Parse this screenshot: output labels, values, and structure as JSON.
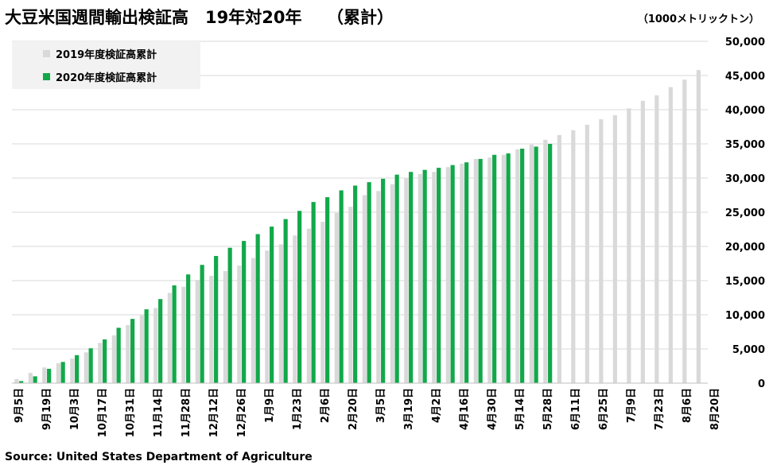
{
  "title": "大豆米国週間輸出検証高　19年対20年　　（累計）",
  "unit": "（1000メトリックトン）",
  "source": "Source: United States Department of Agriculture",
  "colors": {
    "series2019": "#d9d9d9",
    "series2020": "#12a84a",
    "grid": "#d9d9d9",
    "legendBg": "#f2f2f2"
  },
  "chart_data": {
    "type": "bar",
    "title": "大豆米国週間輸出検証高　19年対20年　　（累計）",
    "ylabel": "1000メトリックトン",
    "ylim": [
      0,
      50000
    ],
    "yticks": [
      "0",
      "5,000",
      "10,000",
      "15,000",
      "20,000",
      "25,000",
      "30,000",
      "35,000",
      "40,000",
      "45,000",
      "50,000"
    ],
    "xtick_labels": [
      "9月5日",
      "9月19日",
      "10月3日",
      "10月17日",
      "10月31日",
      "11月14日",
      "11月28日",
      "12月12日",
      "12月26日",
      "1月9日",
      "1月23日",
      "2月6日",
      "2月20日",
      "3月5日",
      "3月19日",
      "4月2日",
      "4月16日",
      "4月30日",
      "5月14日",
      "5月28日",
      "6月11日",
      "6月25日",
      "7月9日",
      "7月23日",
      "8月6日",
      "8月20日"
    ],
    "legend_position": "top-left",
    "series": [
      {
        "name": "2019年度検証高累計",
        "values": [
          600,
          1500,
          2300,
          2900,
          3600,
          4500,
          5900,
          7000,
          8500,
          9900,
          11000,
          13200,
          14100,
          15100,
          15700,
          16400,
          17200,
          18300,
          19400,
          20300,
          21600,
          22600,
          23600,
          24900,
          25800,
          27500,
          28100,
          29100,
          30000,
          30600,
          30900,
          31600,
          32100,
          32800,
          33000,
          33400,
          34200,
          34900,
          35600,
          36300,
          37000,
          37800,
          38600,
          39200,
          40200,
          41300,
          42100,
          43300,
          44400,
          45800
        ]
      },
      {
        "name": "2020年度検証高累計",
        "values": [
          300,
          1000,
          2100,
          3100,
          4100,
          5100,
          6400,
          8100,
          9400,
          10800,
          12300,
          14300,
          15900,
          17300,
          18600,
          19800,
          20800,
          21800,
          22900,
          24000,
          25200,
          26500,
          27200,
          28200,
          28900,
          29400,
          29900,
          30500,
          30900,
          31200,
          31500,
          31900,
          32300,
          32800,
          33400,
          33600,
          34300,
          34600,
          35000
        ]
      }
    ]
  }
}
